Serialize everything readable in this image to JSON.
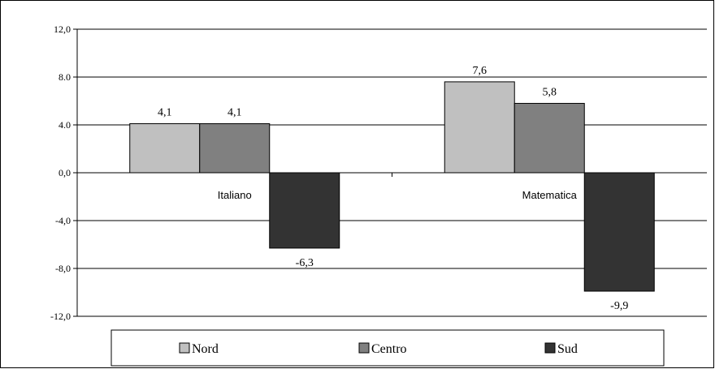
{
  "chart_data": {
    "type": "bar",
    "categories": [
      "Italiano",
      "Matematica"
    ],
    "series": [
      {
        "name": "Nord",
        "values": [
          4.1,
          7.6
        ],
        "labels": [
          "4,1",
          "7,6"
        ],
        "color": "#c0c0c0"
      },
      {
        "name": "Centro",
        "values": [
          4.1,
          5.8
        ],
        "labels": [
          "4,1",
          "5,8"
        ],
        "color": "#808080"
      },
      {
        "name": "Sud",
        "values": [
          -6.3,
          -9.9
        ],
        "labels": [
          "-6,3",
          "-9,9"
        ],
        "color": "#333333"
      }
    ],
    "ylim": [
      -12,
      12
    ],
    "yticks": [
      12,
      8,
      4,
      0,
      -4,
      -8,
      -12
    ],
    "ytick_labels": [
      "12,0",
      "8.0",
      "4.0",
      "0,0",
      "-4,0",
      "-8,0",
      "-12,0"
    ],
    "grid": true,
    "legend_position": "bottom",
    "title": "",
    "xlabel": "",
    "ylabel": ""
  }
}
